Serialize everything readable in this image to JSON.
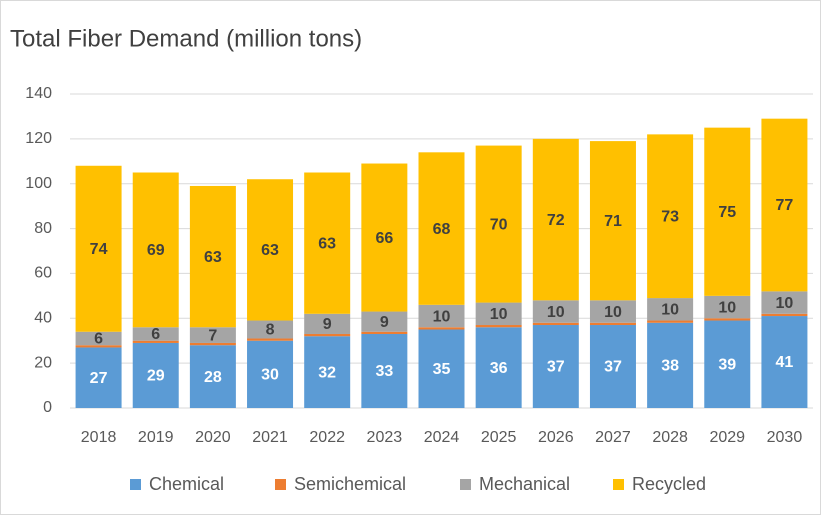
{
  "chart_data": {
    "type": "stacked_bar",
    "title": "Total Fiber Demand (million tons)",
    "categories": [
      "2018",
      "2019",
      "2020",
      "2021",
      "2022",
      "2023",
      "2024",
      "2025",
      "2026",
      "2027",
      "2028",
      "2029",
      "2030"
    ],
    "series": [
      {
        "name": "Chemical",
        "color": "#5b9bd5",
        "values": [
          27,
          29,
          28,
          30,
          32,
          33,
          35,
          36,
          37,
          37,
          38,
          39,
          41
        ]
      },
      {
        "name": "Semichemical",
        "color": "#ed7d31",
        "values": [
          1,
          1,
          1,
          1,
          1,
          1,
          1,
          1,
          1,
          1,
          1,
          1,
          1
        ]
      },
      {
        "name": "Mechanical",
        "color": "#a5a5a5",
        "values": [
          6,
          6,
          7,
          8,
          9,
          9,
          10,
          10,
          10,
          10,
          10,
          10,
          10
        ]
      },
      {
        "name": "Recycled",
        "color": "#ffc000",
        "values": [
          74,
          69,
          63,
          63,
          63,
          66,
          68,
          70,
          72,
          71,
          73,
          75,
          77
        ]
      }
    ],
    "ylim": [
      0,
      140
    ],
    "yticks": [
      0,
      20,
      40,
      60,
      80,
      100,
      120,
      140
    ],
    "grid": true,
    "legend": "bottom"
  }
}
